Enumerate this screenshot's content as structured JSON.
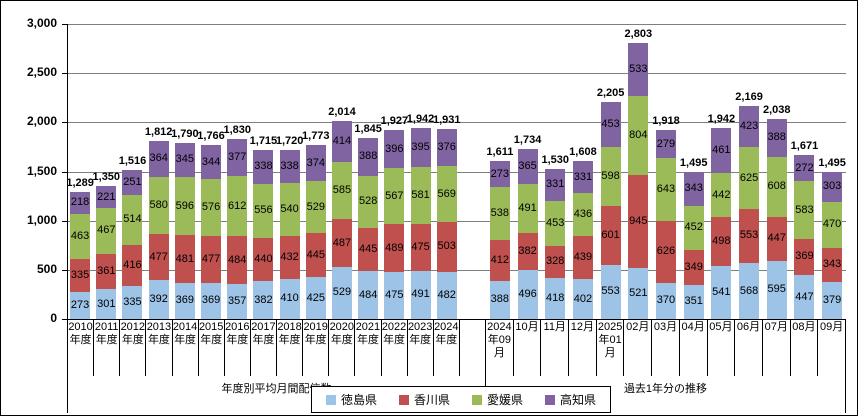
{
  "chart_data": {
    "type": "bar",
    "subtype": "stacked",
    "title": "",
    "legend_position": "bottom",
    "gridlines": true,
    "series": [
      {
        "name": "徳島県",
        "color": "#9DC3E6"
      },
      {
        "name": "香川県",
        "color": "#C0504D"
      },
      {
        "name": "愛媛県",
        "color": "#9BBB59"
      },
      {
        "name": "高知県",
        "color": "#8064A2"
      }
    ],
    "y_axis": {
      "min": 0,
      "max": 3000,
      "tick_interval": 500,
      "tick_labels": [
        "0",
        "500",
        "1,000",
        "1,500",
        "2,000",
        "2,500",
        "3,000"
      ]
    },
    "groups": [
      {
        "label": "年度別平均月間配信数",
        "categories": [
          {
            "label": "2010\n年度",
            "values": [
              273,
              335,
              463,
              218
            ],
            "total": "1,289"
          },
          {
            "label": "2011\n年度",
            "values": [
              301,
              361,
              467,
              221
            ],
            "total": "1,350"
          },
          {
            "label": "2012\n年度",
            "values": [
              335,
              416,
              514,
              251
            ],
            "total": "1,516"
          },
          {
            "label": "2013\n年度",
            "values": [
              392,
              477,
              580,
              364
            ],
            "total": "1,812"
          },
          {
            "label": "2014\n年度",
            "values": [
              369,
              481,
              596,
              345
            ],
            "total": "1,790"
          },
          {
            "label": "2015\n年度",
            "values": [
              369,
              477,
              576,
              344
            ],
            "total": "1,766"
          },
          {
            "label": "2016\n年度",
            "values": [
              357,
              484,
              612,
              377
            ],
            "total": "1,830"
          },
          {
            "label": "2017\n年度",
            "values": [
              382,
              440,
              556,
              338
            ],
            "total": "1,715"
          },
          {
            "label": "2018\n年度",
            "values": [
              410,
              432,
              540,
              338
            ],
            "total": "1,720"
          },
          {
            "label": "2019\n年度",
            "values": [
              425,
              445,
              529,
              374
            ],
            "total": "1,773"
          },
          {
            "label": "2020\n年度",
            "values": [
              529,
              487,
              585,
              414
            ],
            "total": "2,014"
          },
          {
            "label": "2021\n年度",
            "values": [
              484,
              445,
              528,
              388
            ],
            "total": "1,845"
          },
          {
            "label": "2022\n年度",
            "values": [
              475,
              489,
              567,
              396
            ],
            "total": "1,927"
          },
          {
            "label": "2023\n年度",
            "values": [
              491,
              475,
              581,
              395
            ],
            "total": "1,942"
          },
          {
            "label": "2024\n年度",
            "values": [
              482,
              503,
              569,
              376
            ],
            "total": "1,931"
          }
        ]
      },
      {
        "label": "過去1年分の推移",
        "categories": [
          {
            "label": "2024\n年09\n月",
            "values": [
              388,
              412,
              538,
              273
            ],
            "total": "1,611"
          },
          {
            "label": "10月",
            "values": [
              496,
              382,
              491,
              365
            ],
            "total": "1,734"
          },
          {
            "label": "11月",
            "values": [
              418,
              328,
              453,
              331
            ],
            "total": "1,530"
          },
          {
            "label": "12月",
            "values": [
              402,
              439,
              436,
              331
            ],
            "total": "1,608"
          },
          {
            "label": "2025\n年01\n月",
            "values": [
              553,
              601,
              598,
              453
            ],
            "total": "2,205"
          },
          {
            "label": "02月",
            "values": [
              521,
              945,
              804,
              533
            ],
            "total": "2,803"
          },
          {
            "label": "03月",
            "values": [
              370,
              626,
              643,
              279
            ],
            "total": "1,918"
          },
          {
            "label": "04月",
            "values": [
              351,
              349,
              452,
              343
            ],
            "total": "1,495"
          },
          {
            "label": "05月",
            "values": [
              541,
              498,
              442,
              461
            ],
            "total": "1,942"
          },
          {
            "label": "06月",
            "values": [
              568,
              553,
              625,
              423
            ],
            "total": "2,169"
          },
          {
            "label": "07月",
            "values": [
              595,
              447,
              608,
              388
            ],
            "total": "2,038"
          },
          {
            "label": "08月",
            "values": [
              447,
              369,
              583,
              272
            ],
            "total": "1,671"
          },
          {
            "label": "09月",
            "values": [
              379,
              343,
              470,
              303
            ],
            "total": "1,495"
          }
        ]
      }
    ]
  }
}
